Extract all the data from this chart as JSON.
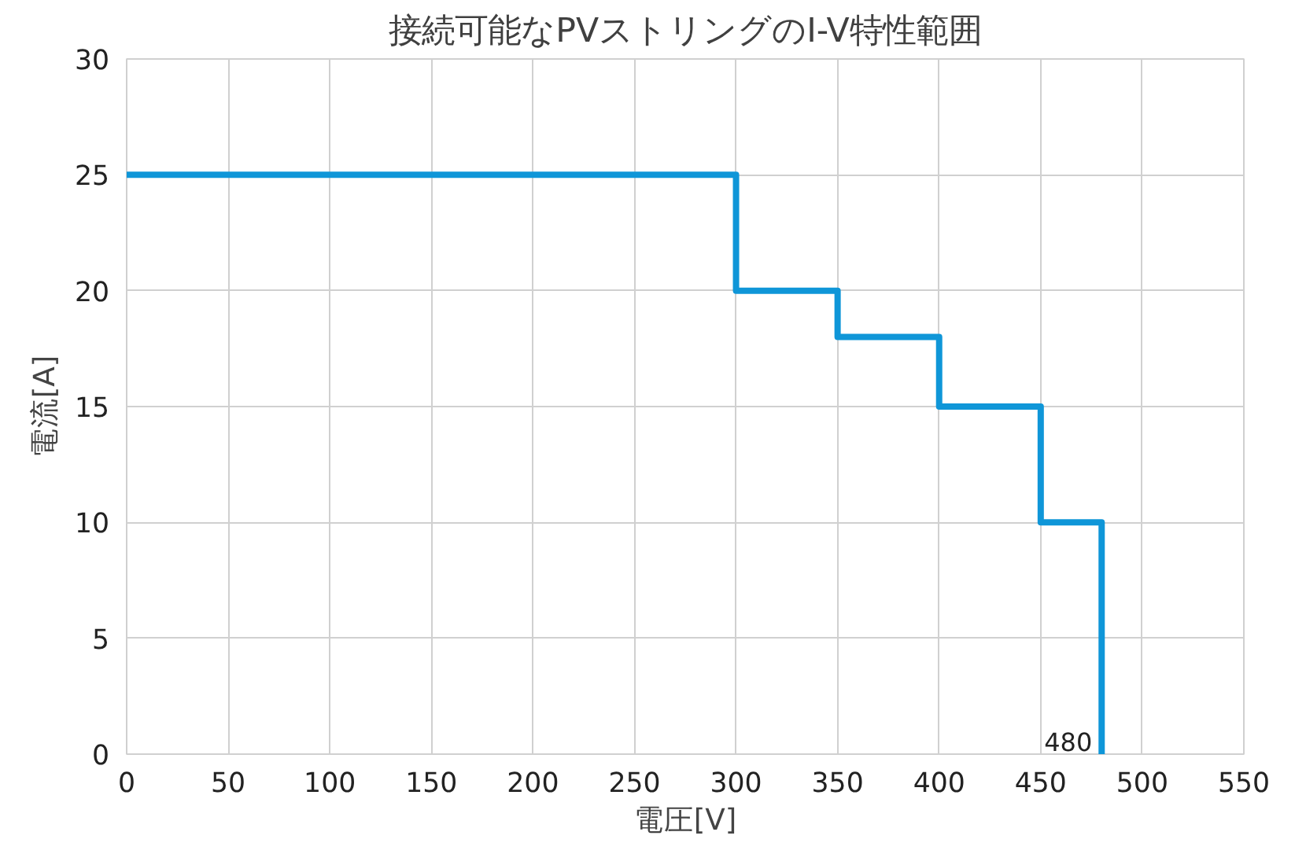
{
  "chart_data": {
    "type": "step",
    "title": "接続可能なPVストリングのI-V特性範囲",
    "xlabel": "電圧[V]",
    "ylabel": "電流[A]",
    "x": [
      0,
      300,
      350,
      400,
      450,
      480
    ],
    "series": [
      {
        "color": "#0f96d8",
        "values": [
          25,
          20,
          18,
          15,
          10,
          0
        ]
      }
    ],
    "xlim": [
      0,
      550
    ],
    "xticks": [
      0,
      50,
      100,
      150,
      200,
      250,
      300,
      350,
      400,
      450,
      500,
      550
    ],
    "ylim": [
      0,
      30
    ],
    "yticks": [
      0,
      5,
      10,
      15,
      20,
      25,
      30
    ],
    "grid": true,
    "annotations": [
      {
        "text": "480",
        "x": 480,
        "y": 0
      }
    ]
  }
}
